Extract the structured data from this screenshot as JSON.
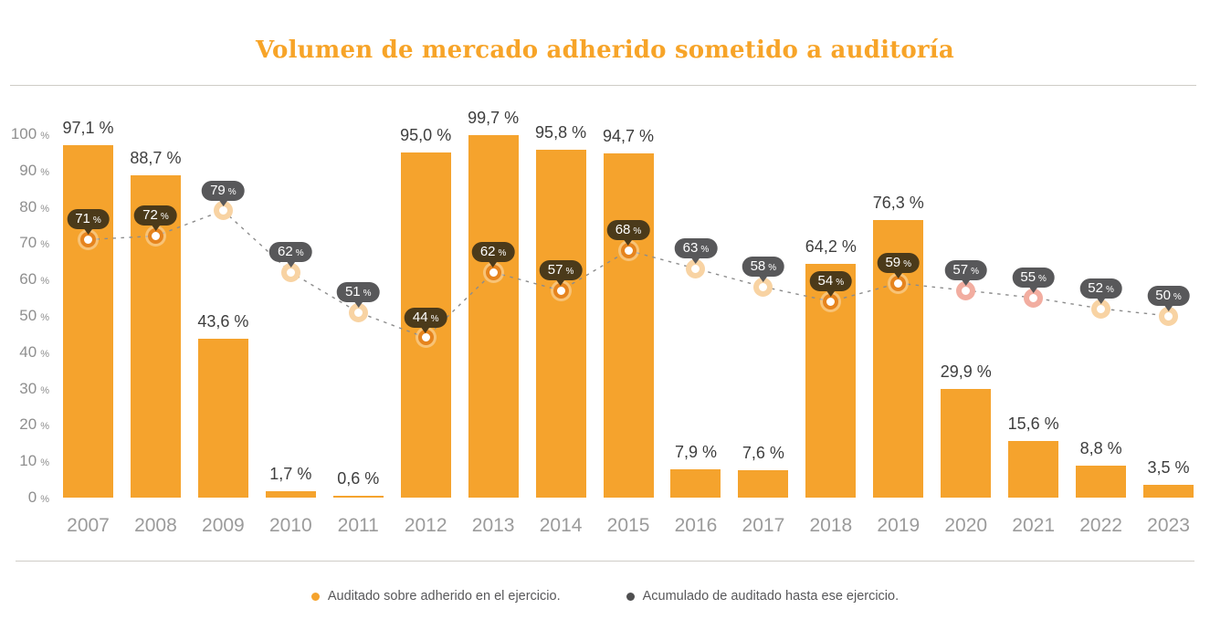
{
  "title": "Volumen de mercado adherido sometido a auditoría",
  "colors": {
    "title": "#F7A428",
    "bar": "#F5A32D",
    "bar_label": "#3E3E3E",
    "axis_label": "#8F8F8F",
    "year_label": "#9B9B9B",
    "badge_on_bar": "#4B3A1A",
    "badge_off_bar": "#58585A",
    "marker_ring_on_bar": "#E6841E",
    "marker_ring_off_bar": "#F8D3A3",
    "marker_ring_off_bar_alt": "#F2ADA0",
    "dashed_line": "#8C8C8C",
    "divider": "#CFCCC7",
    "legend_text": "#58585A",
    "legend_dot_line": "#4F4F50"
  },
  "chart_data": {
    "type": "bar",
    "title": "Volumen de mercado adherido sometido a auditoría",
    "categories": [
      "2007",
      "2008",
      "2009",
      "2010",
      "2011",
      "2012",
      "2013",
      "2014",
      "2015",
      "2016",
      "2017",
      "2018",
      "2019",
      "2020",
      "2021",
      "2022",
      "2023"
    ],
    "series": [
      {
        "name": "Auditado sobre adherido en el ejercicio.",
        "type": "bar",
        "values": [
          97.1,
          88.7,
          43.6,
          1.7,
          0.6,
          95.0,
          99.7,
          95.8,
          94.7,
          7.9,
          7.6,
          64.2,
          76.3,
          29.9,
          15.6,
          8.8,
          3.5
        ],
        "labels": [
          "97,1 %",
          "88,7 %",
          "43,6 %",
          "1,7 %",
          "0,6 %",
          "95,0 %",
          "99,7 %",
          "95,8 %",
          "94,7 %",
          "7,9 %",
          "7,6 %",
          "64,2 %",
          "76,3 %",
          "29,9 %",
          "15,6 %",
          "8,8 %",
          "3,5 %"
        ]
      },
      {
        "name": "Acumulado de auditado hasta ese ejercicio.",
        "type": "line",
        "style": "dashed",
        "values": [
          71,
          72,
          79,
          62,
          51,
          44,
          62,
          57,
          68,
          63,
          58,
          54,
          59,
          57,
          55,
          52,
          50
        ],
        "labels": [
          "71 %",
          "72 %",
          "79 %",
          "62 %",
          "51 %",
          "44 %",
          "62 %",
          "57 %",
          "68 %",
          "63 %",
          "58 %",
          "54 %",
          "59 %",
          "57 %",
          "55 %",
          "52 %",
          "50 %"
        ],
        "alt_ring_indices": [
          13,
          14
        ]
      }
    ],
    "ylim": [
      0,
      100
    ],
    "y_ticks": [
      100,
      90,
      80,
      70,
      60,
      50,
      40,
      30,
      20,
      10,
      0
    ],
    "y_tick_unit": "%",
    "grid": false,
    "legend_position": "bottom"
  }
}
